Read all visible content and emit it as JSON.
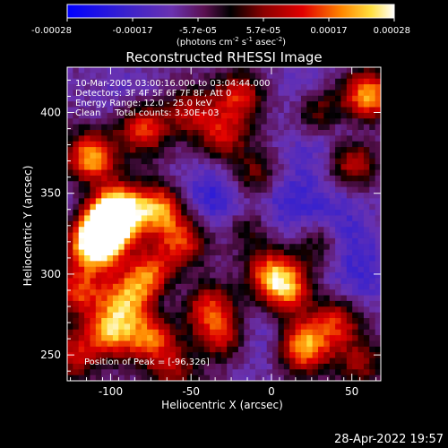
{
  "colorbar": {
    "ticks": [
      "-0.00028",
      "-0.00017",
      "-5.7e-05",
      "5.7e-05",
      "0.00017",
      "0.00028"
    ],
    "units_main": "(photons cm",
    "units_exp1": "-2",
    "units_mid": " s",
    "units_exp2": "-1",
    "units_tail": " asec",
    "units_exp3": "-2",
    "units_close": ")"
  },
  "title": "Reconstructed RHESSI Image",
  "annotations": {
    "line1": "10-Mar-2005 03:00:16.000 to 03:04:44.000",
    "line2": "Detectors: 3F 4F 5F 6F 7F 8F, Att 0",
    "line3": "Energy Range: 12.0 - 25.0 keV",
    "line4": "Clean     Total counts: 3.30E+03",
    "peak": "Position of Peak = [-96,326]"
  },
  "footer": {
    "timestamp": "28-Apr-2022 19:57"
  },
  "chart_data": {
    "type": "heatmap",
    "title": "Reconstructed RHESSI Image",
    "xlabel": "Heliocentric X (arcsec)",
    "ylabel": "Heliocentric Y (arcsec)",
    "xlim": [
      -127,
      68
    ],
    "ylim": [
      234,
      428
    ],
    "xticks": [
      -100,
      -50,
      0,
      50
    ],
    "yticks": [
      250,
      300,
      350,
      400
    ],
    "colorbar_range": [
      -0.00028,
      0.00028
    ],
    "colormap": "RHESSI blue-purple-red-orange-yellow-white",
    "peak_position": [
      -96,
      326
    ],
    "hotspots": [
      {
        "x": -103,
        "y": 330,
        "level": 1.0
      },
      {
        "x": -110,
        "y": 318,
        "level": 0.95
      },
      {
        "x": -95,
        "y": 340,
        "level": 0.85
      },
      {
        "x": -112,
        "y": 372,
        "level": 0.75
      },
      {
        "x": -80,
        "y": 390,
        "level": 0.6
      },
      {
        "x": -70,
        "y": 340,
        "level": 0.7
      },
      {
        "x": -55,
        "y": 320,
        "level": 0.55
      },
      {
        "x": -75,
        "y": 300,
        "level": 0.65
      },
      {
        "x": -90,
        "y": 285,
        "level": 0.6
      },
      {
        "x": -120,
        "y": 290,
        "level": 0.55
      },
      {
        "x": -100,
        "y": 265,
        "level": 0.7
      },
      {
        "x": -75,
        "y": 260,
        "level": 0.6
      },
      {
        "x": -40,
        "y": 280,
        "level": 0.55
      },
      {
        "x": -30,
        "y": 262,
        "level": 0.5
      },
      {
        "x": 10,
        "y": 290,
        "level": 0.55
      },
      {
        "x": 20,
        "y": 255,
        "level": 0.75
      },
      {
        "x": 40,
        "y": 270,
        "level": 0.5
      },
      {
        "x": 55,
        "y": 245,
        "level": 0.35
      },
      {
        "x": 60,
        "y": 410,
        "level": 0.8
      },
      {
        "x": 50,
        "y": 370,
        "level": 0.55
      },
      {
        "x": 30,
        "y": 400,
        "level": 0.45
      },
      {
        "x": -20,
        "y": 410,
        "level": 0.5
      },
      {
        "x": -10,
        "y": 360,
        "level": 0.4
      },
      {
        "x": -30,
        "y": 385,
        "level": 0.45
      },
      {
        "x": -50,
        "y": 400,
        "level": 0.4
      },
      {
        "x": 0,
        "y": 300,
        "level": 0.6
      },
      {
        "x": -15,
        "y": 330,
        "level": 0.35
      },
      {
        "x": 30,
        "y": 320,
        "level": 0.35
      },
      {
        "x": -123,
        "y": 250,
        "level": 0.45
      },
      {
        "x": -60,
        "y": 240,
        "level": 0.35
      }
    ],
    "coldspots": [
      {
        "x": -40,
        "y": 350,
        "level": 0.7
      },
      {
        "x": -20,
        "y": 340,
        "level": 0.6
      },
      {
        "x": 10,
        "y": 345,
        "level": 0.75
      },
      {
        "x": 40,
        "y": 330,
        "level": 0.8
      },
      {
        "x": 55,
        "y": 300,
        "level": 0.7
      },
      {
        "x": 30,
        "y": 380,
        "level": 0.55
      },
      {
        "x": -60,
        "y": 290,
        "level": 0.5
      },
      {
        "x": -10,
        "y": 260,
        "level": 0.55
      },
      {
        "x": 50,
        "y": 390,
        "level": 0.5
      },
      {
        "x": -90,
        "y": 410,
        "level": 0.4
      },
      {
        "x": 20,
        "y": 415,
        "level": 0.45
      },
      {
        "x": -120,
        "y": 340,
        "level": 0.4
      }
    ]
  }
}
